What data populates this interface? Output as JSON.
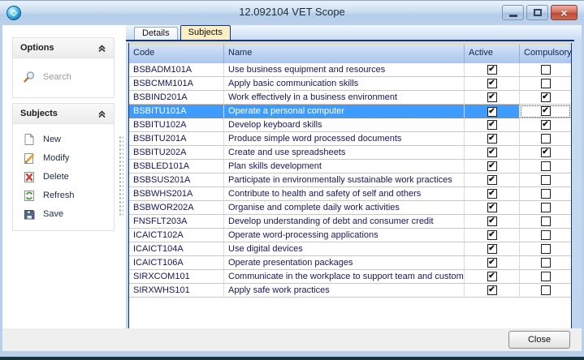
{
  "window": {
    "title": "12.092104 VET Scope",
    "controls": {
      "minimize": "minimize",
      "maximize": "maximize",
      "close": "close"
    }
  },
  "sidebar": {
    "panels": [
      {
        "title": "Options",
        "collapse_icon": "double-chevron-up-icon",
        "items": [
          {
            "icon": "search-icon",
            "label": "Search",
            "disabled": true
          }
        ]
      },
      {
        "title": "Subjects",
        "collapse_icon": "double-chevron-up-icon",
        "items": [
          {
            "icon": "new-page-icon",
            "label": "New"
          },
          {
            "icon": "modify-pencil-icon",
            "label": "Modify"
          },
          {
            "icon": "delete-red-x-icon",
            "label": "Delete"
          },
          {
            "icon": "refresh-green-arrows-icon",
            "label": "Refresh"
          },
          {
            "icon": "save-floppy-icon",
            "label": "Save"
          }
        ]
      }
    ]
  },
  "tabs": [
    {
      "label": "Details",
      "active": false
    },
    {
      "label": "Subjects",
      "active": true
    }
  ],
  "table": {
    "columns": [
      "Code",
      "Name",
      "Active",
      "Compulsory"
    ],
    "rows": [
      {
        "code": "BSBADM101A",
        "name": "Use business equipment and resources",
        "active": true,
        "compulsory": false
      },
      {
        "code": "BSBCMM101A",
        "name": "Apply basic communication skills",
        "active": true,
        "compulsory": false
      },
      {
        "code": "BSBIND201A",
        "name": "Work effectively in a business environment",
        "active": true,
        "compulsory": true
      },
      {
        "code": "BSBITU101A",
        "name": "Operate a personal computer",
        "active": true,
        "compulsory": true,
        "selected": true
      },
      {
        "code": "BSBITU102A",
        "name": "Develop keyboard skills",
        "active": true,
        "compulsory": true
      },
      {
        "code": "BSBITU201A",
        "name": "Produce simple word processed documents",
        "active": true,
        "compulsory": false
      },
      {
        "code": "BSBITU202A",
        "name": "Create and use spreadsheets",
        "active": true,
        "compulsory": true
      },
      {
        "code": "BSBLED101A",
        "name": "Plan skills development",
        "active": true,
        "compulsory": false
      },
      {
        "code": "BSBSUS201A",
        "name": "Participate in environmentally sustainable work practices",
        "active": true,
        "compulsory": false
      },
      {
        "code": "BSBWHS201A",
        "name": "Contribute to health and safety of self and others",
        "active": true,
        "compulsory": false
      },
      {
        "code": "BSBWOR202A",
        "name": "Organise and complete daily work activities",
        "active": true,
        "compulsory": false
      },
      {
        "code": "FNSFLT203A",
        "name": "Develop understanding of debt and consumer credit",
        "active": true,
        "compulsory": false
      },
      {
        "code": "ICAICT102A",
        "name": "Operate word-processing applications",
        "active": true,
        "compulsory": false
      },
      {
        "code": "ICAICT104A",
        "name": "Use digital devices",
        "active": true,
        "compulsory": false
      },
      {
        "code": "ICAICT106A",
        "name": "Operate presentation packages",
        "active": true,
        "compulsory": false
      },
      {
        "code": "SIRXCOM101",
        "name": "Communicate in the workplace to support team and customer",
        "active": true,
        "compulsory": false
      },
      {
        "code": "SIRXWHS101",
        "name": "Apply safe work practices",
        "active": true,
        "compulsory": false
      }
    ]
  },
  "footer": {
    "close_label": "Close"
  },
  "colors": {
    "selection_bg": "#3E9CFE",
    "selection_dashed_border": "#BF8146",
    "active_tab_bg": "#FCEFC4",
    "tab_underline": "#16337E",
    "header_top_line": "#F2D9A2",
    "grid_header_gradient_top": "#D5E4F8",
    "grid_header_gradient_bottom": "#AAC7ED",
    "titlebar_gradient_top": "#EAF3FB",
    "titlebar_gradient_bottom": "#BCD2EA",
    "close_window_button_red": "#BE4B38",
    "frame_blue": "#B9D0EA"
  }
}
